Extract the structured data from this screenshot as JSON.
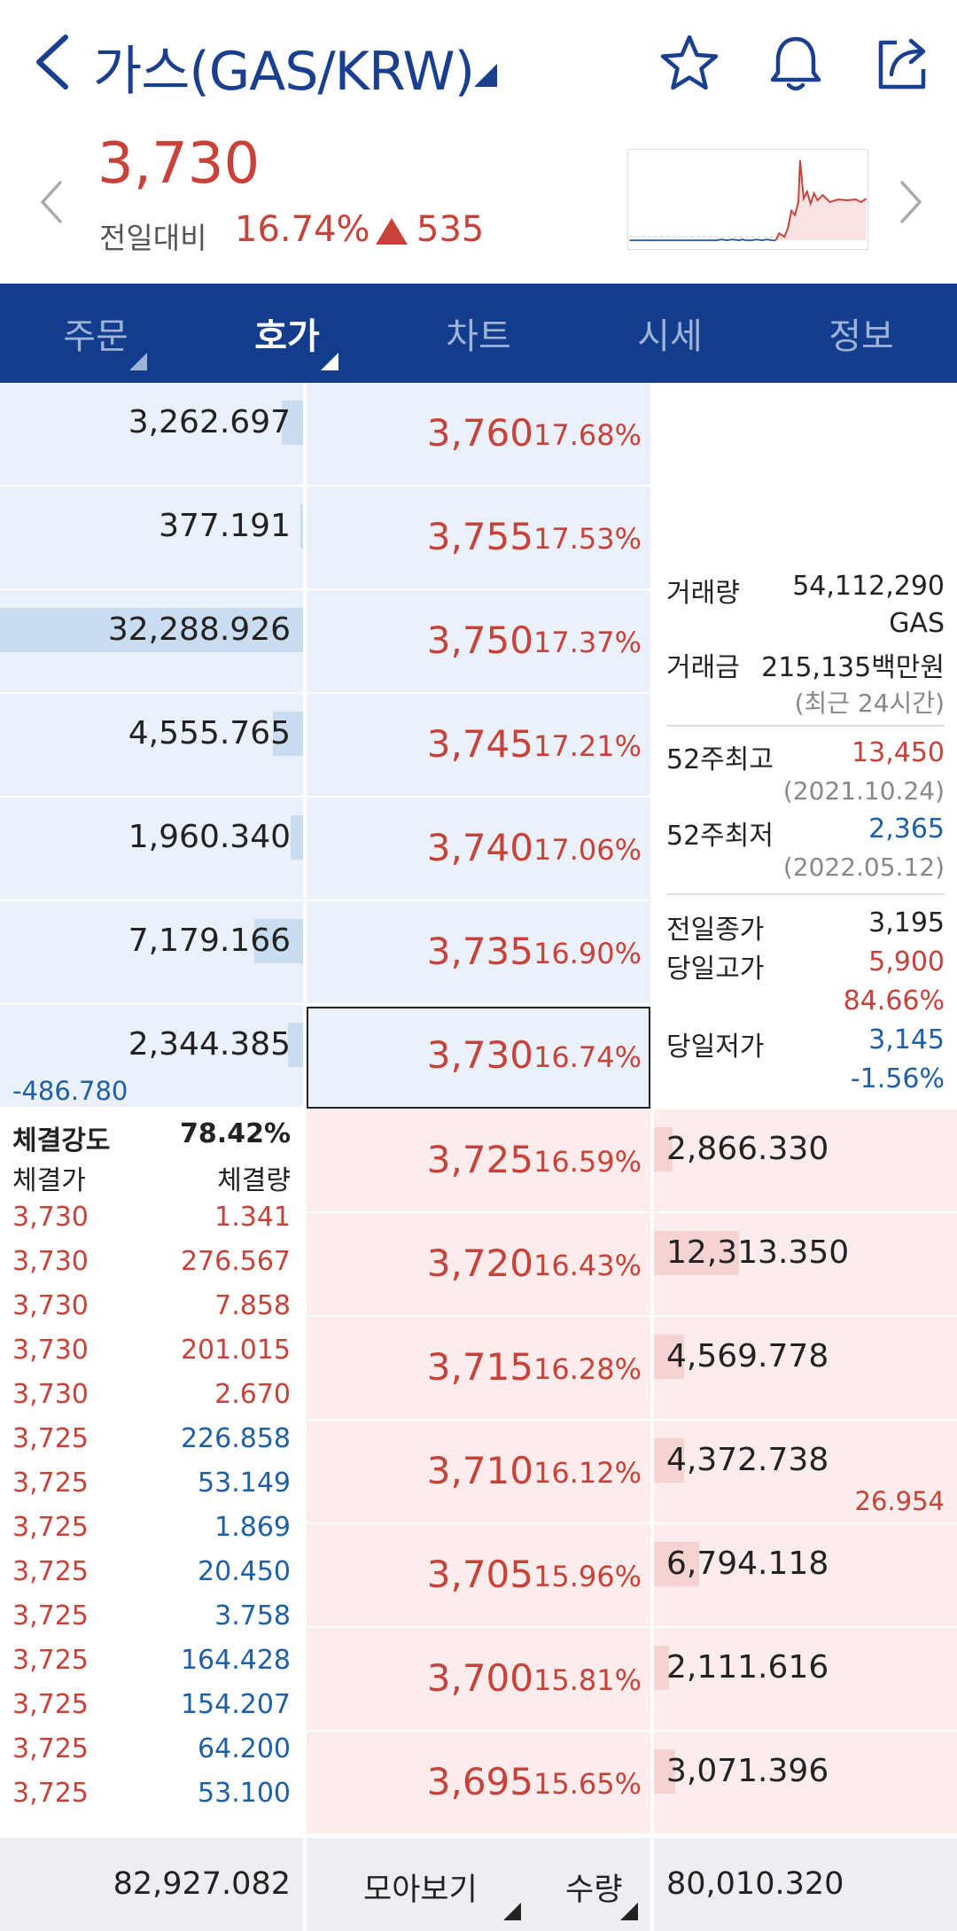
{
  "header": {
    "title": "가스(GAS/KRW)",
    "price": "3,730",
    "prev_label": "전일대비",
    "change_pct": "16.74%",
    "change_val": "535"
  },
  "tabs": [
    {
      "label": "주문",
      "active": false,
      "has_tri": true
    },
    {
      "label": "호가",
      "active": true,
      "has_tri": true
    },
    {
      "label": "차트",
      "active": false,
      "has_tri": false
    },
    {
      "label": "시세",
      "active": false,
      "has_tri": false
    },
    {
      "label": "정보",
      "active": false,
      "has_tri": false
    }
  ],
  "asks": [
    {
      "volume": "3,262.697",
      "price": "3,760",
      "pct": "17.68%",
      "bar": 0.07
    },
    {
      "volume": "377.191",
      "price": "3,755",
      "pct": "17.53%",
      "bar": 0.01
    },
    {
      "volume": "32,288.926",
      "price": "3,750",
      "pct": "17.37%",
      "bar": 1.0
    },
    {
      "volume": "4,555.765",
      "price": "3,745",
      "pct": "17.21%",
      "bar": 0.1
    },
    {
      "volume": "1,960.340",
      "price": "3,740",
      "pct": "17.06%",
      "bar": 0.04
    },
    {
      "volume": "7,179.166",
      "price": "3,735",
      "pct": "16.90%",
      "bar": 0.16
    },
    {
      "volume": "2,344.385",
      "price": "3,730",
      "pct": "16.74%",
      "bar": 0.05
    }
  ],
  "ask_delta": "-486.780",
  "bids": [
    {
      "volume": "2,866.330",
      "price": "3,725",
      "pct": "16.59%",
      "bar": 0.06
    },
    {
      "volume": "12,313.350",
      "price": "3,720",
      "pct": "16.43%",
      "bar": 0.28
    },
    {
      "volume": "4,569.778",
      "price": "3,715",
      "pct": "16.28%",
      "bar": 0.1
    },
    {
      "volume": "4,372.738",
      "price": "3,710",
      "pct": "16.12%",
      "bar": 0.1
    },
    {
      "volume": "6,794.118",
      "price": "3,705",
      "pct": "15.96%",
      "bar": 0.15
    },
    {
      "volume": "2,111.616",
      "price": "3,700",
      "pct": "15.81%",
      "bar": 0.05
    },
    {
      "volume": "3,071.396",
      "price": "3,695",
      "pct": "15.65%",
      "bar": 0.07
    }
  ],
  "bid_delta": "26.954",
  "info": {
    "volume_label": "거래량",
    "volume_value": "54,112,290",
    "volume_unit": "GAS",
    "amount_label": "거래금",
    "amount_value": "215,135백만원",
    "amount_note": "(최근 24시간)",
    "high52_label": "52주최고",
    "high52_value": "13,450",
    "high52_date": "(2021.10.24)",
    "low52_label": "52주최저",
    "low52_value": "2,365",
    "low52_date": "(2022.05.12)",
    "prev_close_label": "전일종가",
    "prev_close_value": "3,195",
    "day_high_label": "당일고가",
    "day_high_value": "5,900",
    "day_high_pct": "84.66%",
    "day_low_label": "당일저가",
    "day_low_value": "3,145",
    "day_low_pct": "-1.56%"
  },
  "trades": {
    "strength_label": "체결강도",
    "strength_value": "78.42%",
    "price_header": "체결가",
    "qty_header": "체결량",
    "rows": [
      {
        "price": "3,730",
        "qty": "1.341",
        "side": "buy"
      },
      {
        "price": "3,730",
        "qty": "276.567",
        "side": "buy"
      },
      {
        "price": "3,730",
        "qty": "7.858",
        "side": "buy"
      },
      {
        "price": "3,730",
        "qty": "201.015",
        "side": "buy"
      },
      {
        "price": "3,730",
        "qty": "2.670",
        "side": "buy"
      },
      {
        "price": "3,725",
        "qty": "226.858",
        "side": "sell"
      },
      {
        "price": "3,725",
        "qty": "53.149",
        "side": "sell"
      },
      {
        "price": "3,725",
        "qty": "1.869",
        "side": "sell"
      },
      {
        "price": "3,725",
        "qty": "20.450",
        "side": "sell"
      },
      {
        "price": "3,725",
        "qty": "3.758",
        "side": "sell"
      },
      {
        "price": "3,725",
        "qty": "164.428",
        "side": "sell"
      },
      {
        "price": "3,725",
        "qty": "154.207",
        "side": "sell"
      },
      {
        "price": "3,725",
        "qty": "64.200",
        "side": "sell"
      },
      {
        "price": "3,725",
        "qty": "53.100",
        "side": "sell"
      }
    ]
  },
  "footer": {
    "ask_total": "82,927.082",
    "view_label": "모아보기",
    "qty_label": "수량",
    "bid_total": "80,010.320"
  },
  "colors": {
    "navy": "#133d8c",
    "up_red": "#c8423a",
    "down_blue": "#1f5fa6",
    "ask_bg": "#eaf1fa",
    "bid_bg": "#fcecec"
  },
  "icons": [
    "back-arrow-icon",
    "dropdown-triangle-icon",
    "star-icon",
    "bell-icon",
    "share-icon",
    "up-triangle-icon",
    "chevron-left-icon",
    "chevron-right-icon"
  ]
}
